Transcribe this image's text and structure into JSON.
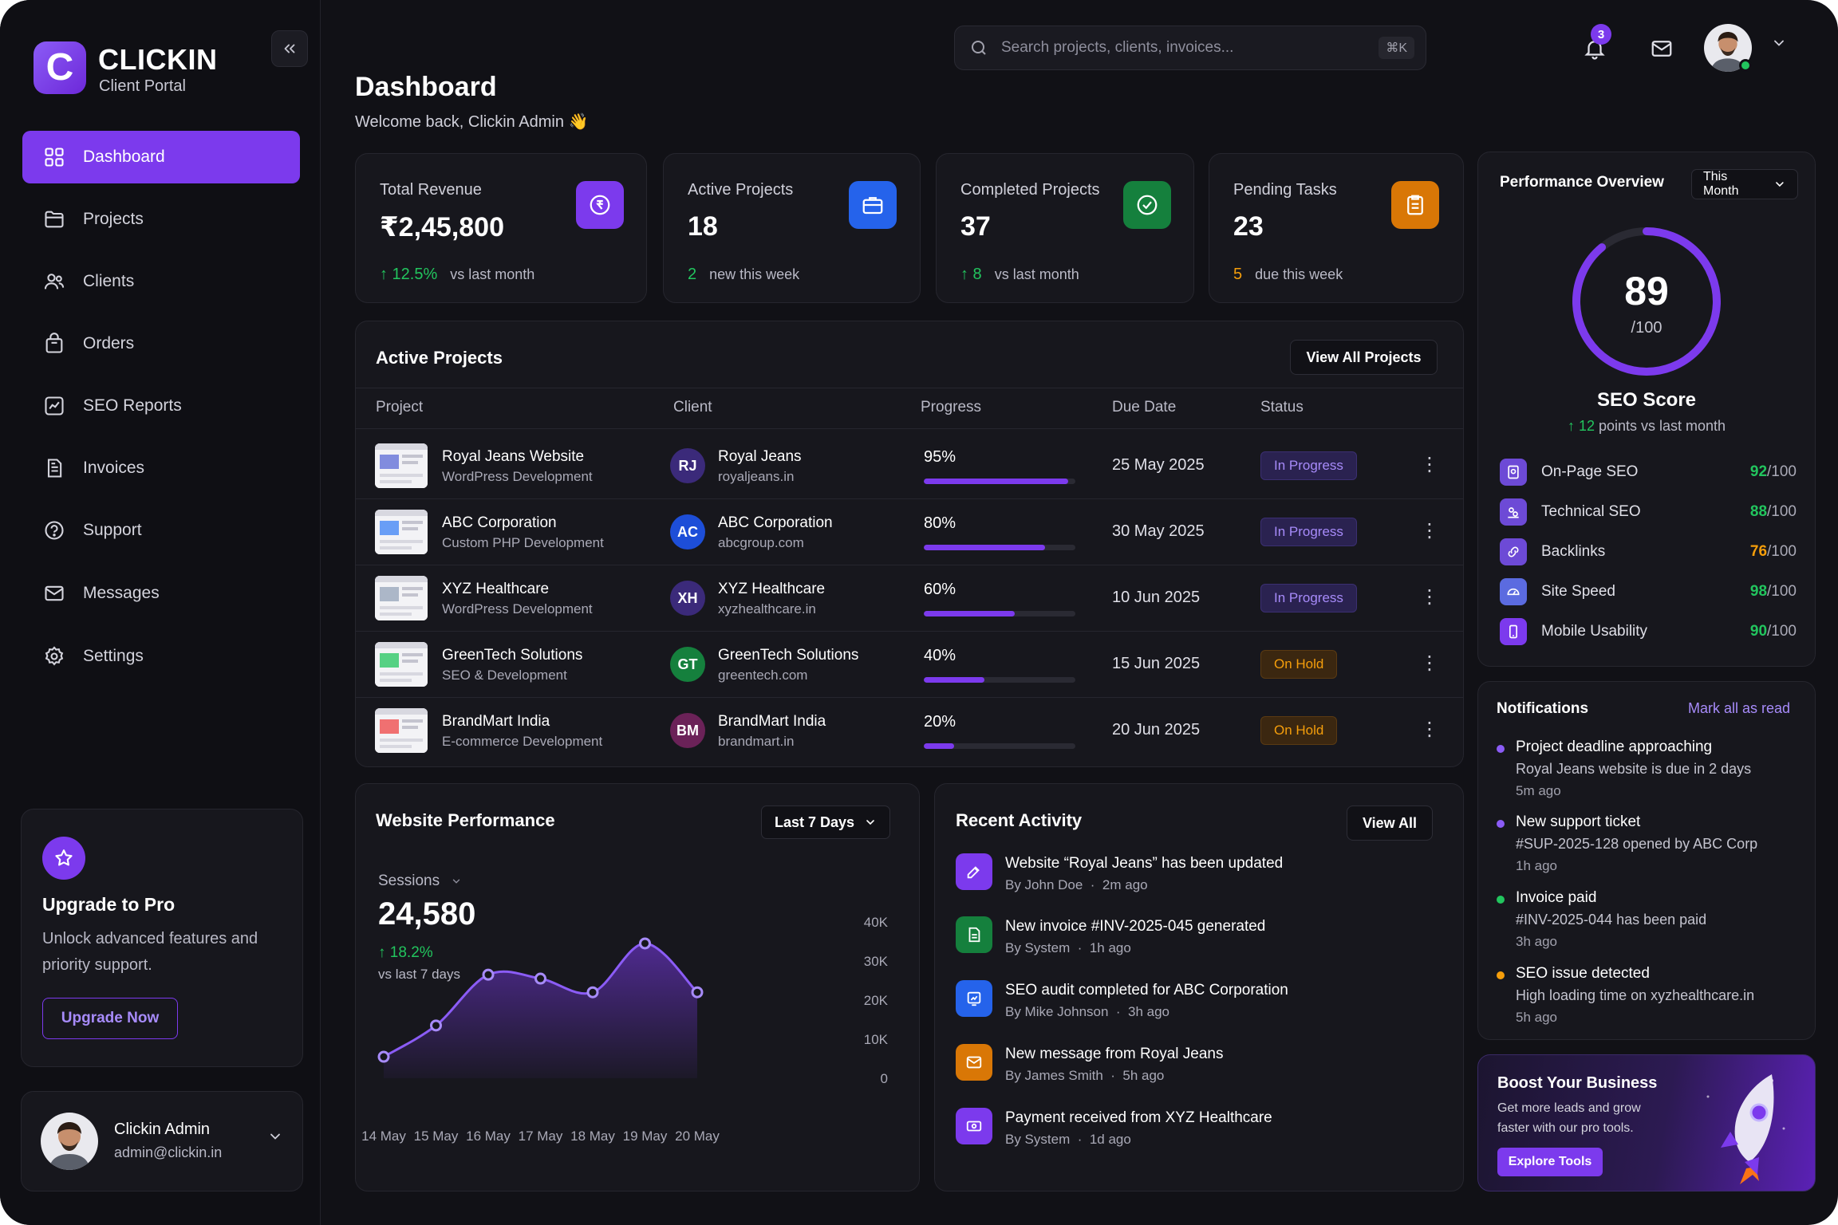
{
  "brand": {
    "letter": "C",
    "name": "CLICKIN",
    "subtitle": "Client Portal"
  },
  "sidebar": {
    "collapse_icon": "double-chevron-left-icon",
    "items": [
      {
        "label": "Dashboard",
        "icon": "grid-icon",
        "active": true
      },
      {
        "label": "Projects",
        "icon": "folder-icon"
      },
      {
        "label": "Clients",
        "icon": "users-icon"
      },
      {
        "label": "Orders",
        "icon": "shopping-bag-icon"
      },
      {
        "label": "SEO Reports",
        "icon": "chart-icon"
      },
      {
        "label": "Invoices",
        "icon": "document-icon"
      },
      {
        "label": "Support",
        "icon": "headset-icon"
      },
      {
        "label": "Messages",
        "icon": "mail-icon"
      },
      {
        "label": "Settings",
        "icon": "gear-icon"
      }
    ],
    "upgrade": {
      "title": "Upgrade to Pro",
      "text": "Unlock advanced features and priority support.",
      "button": "Upgrade Now"
    },
    "profile": {
      "name": "Clickin Admin",
      "email": "admin@clickin.in"
    }
  },
  "header": {
    "title": "Dashboard",
    "welcome": "Welcome back, Clickin Admin 👋",
    "search_placeholder": "Search projects, clients, invoices...",
    "search_shortcut": "⌘K",
    "notification_count": "3"
  },
  "stats": [
    {
      "label": "Total Revenue",
      "value": "₹2,45,800",
      "delta": "↑ 12.5%",
      "note": "vs last month",
      "icon": "rupee-icon",
      "color": "#7c3aed"
    },
    {
      "label": "Active Projects",
      "value": "18",
      "delta": "2",
      "note": "new this week",
      "icon": "briefcase-icon",
      "color": "#2563eb"
    },
    {
      "label": "Completed Projects",
      "value": "37",
      "delta": "↑ 8",
      "note": "vs last month",
      "icon": "check-circle-icon",
      "color": "#15803d"
    },
    {
      "label": "Pending Tasks",
      "value": "23",
      "delta": "5",
      "note": "due this week",
      "icon": "clipboard-icon",
      "color": "#d97706"
    }
  ],
  "active_projects": {
    "title": "Active Projects",
    "view_all": "View All Projects",
    "columns": [
      "Project",
      "Client",
      "Progress",
      "Due Date",
      "Status"
    ],
    "rows": [
      {
        "name": "Royal Jeans Website",
        "type": "WordPress Development",
        "initials": "RJ",
        "client": "Royal Jeans",
        "site": "royaljeans.in",
        "progress": "95%",
        "progress_value": 0.95,
        "due": "25 May 2025",
        "status": "In Progress",
        "av_color": "#3b2a7a"
      },
      {
        "name": "ABC Corporation",
        "type": "Custom PHP Development",
        "initials": "AC",
        "client": "ABC Corporation",
        "site": "abcgroup.com",
        "progress": "80%",
        "progress_value": 0.8,
        "due": "30 May 2025",
        "status": "In Progress",
        "av_color": "#1d4ed8"
      },
      {
        "name": "XYZ Healthcare",
        "type": "WordPress Development",
        "initials": "XH",
        "client": "XYZ Healthcare",
        "site": "xyzhealthcare.in",
        "progress": "60%",
        "progress_value": 0.6,
        "due": "10 Jun 2025",
        "status": "In Progress",
        "av_color": "#3b2a7a"
      },
      {
        "name": "GreenTech Solutions",
        "type": "SEO & Development",
        "initials": "GT",
        "client": "GreenTech Solutions",
        "site": "greentech.com",
        "progress": "40%",
        "progress_value": 0.4,
        "due": "15 Jun 2025",
        "status": "On Hold",
        "av_color": "#15803d"
      },
      {
        "name": "BrandMart India",
        "type": "E-commerce Development",
        "initials": "BM",
        "client": "BrandMart India",
        "site": "brandmart.in",
        "progress": "20%",
        "progress_value": 0.2,
        "due": "20 Jun 2025",
        "status": "On Hold",
        "av_color": "#6b2258"
      }
    ]
  },
  "performance": {
    "title": "Performance Overview",
    "period": "This Month",
    "score": "89",
    "score_max": "/100",
    "score_value": 0.89,
    "score_label": "SEO Score",
    "score_delta": "↑ 12",
    "score_note": "points vs last month",
    "metrics": [
      {
        "label": "On-Page SEO",
        "score": "92",
        "max": "/100",
        "color": "#22c55e",
        "icon": "page-icon"
      },
      {
        "label": "Technical SEO",
        "score": "88",
        "max": "/100",
        "color": "#22c55e",
        "icon": "settings-icon"
      },
      {
        "label": "Backlinks",
        "score": "76",
        "max": "/100",
        "color": "#f59e0b",
        "icon": "link-icon"
      },
      {
        "label": "Site Speed",
        "score": "98",
        "max": "/100",
        "color": "#22c55e",
        "icon": "speedometer-icon"
      },
      {
        "label": "Mobile Usability",
        "score": "90",
        "max": "/100",
        "color": "#22c55e",
        "icon": "mobile-icon"
      }
    ]
  },
  "notifications": {
    "title": "Notifications",
    "mark_all": "Mark all as read",
    "items": [
      {
        "title": "Project deadline approaching",
        "body": "Royal Jeans website is due in 2 days",
        "time": "5m ago",
        "color": "#8b5cf6"
      },
      {
        "title": "New support ticket",
        "body": "#SUP-2025-128 opened by ABC Corp",
        "time": "1h ago",
        "color": "#8b5cf6"
      },
      {
        "title": "Invoice paid",
        "body": "#INV-2025-044 has been paid",
        "time": "3h ago",
        "color": "#22c55e"
      },
      {
        "title": "SEO issue detected",
        "body": "High loading time on xyzhealthcare.in",
        "time": "5h ago",
        "color": "#f59e0b"
      }
    ]
  },
  "boost": {
    "title": "Boost Your Business",
    "text": "Get more leads and grow faster with our pro tools.",
    "button": "Explore Tools"
  },
  "website_performance": {
    "title": "Website Performance",
    "range": "Last 7 Days",
    "metric": "Sessions",
    "value": "24,580",
    "delta": "↑ 18.2%",
    "note": "vs last 7 days"
  },
  "chart_data": {
    "type": "area",
    "x": [
      "14 May",
      "15 May",
      "16 May",
      "17 May",
      "18 May",
      "19 May",
      "20 May"
    ],
    "series": [
      {
        "values": [
          5500,
          13500,
          26500,
          25500,
          22000,
          34500,
          22000
        ]
      }
    ],
    "yticks": [
      "40K",
      "30K",
      "20K",
      "10K",
      "0"
    ],
    "ylim": [
      0,
      40000
    ],
    "grid": false
  },
  "recent_activity": {
    "title": "Recent Activity",
    "view_all": "View All",
    "items": [
      {
        "title": "Website “Royal Jeans” has been updated",
        "by": "By John Doe",
        "time": "2m ago",
        "icon": "edit-icon",
        "color": "#7c3aed"
      },
      {
        "title": "New invoice #INV-2025-045 generated",
        "by": "By System",
        "time": "1h ago",
        "icon": "invoice-icon",
        "color": "#15803d"
      },
      {
        "title": "SEO audit completed for ABC Corporation",
        "by": "By Mike Johnson",
        "time": "3h ago",
        "icon": "audit-icon",
        "color": "#2563eb"
      },
      {
        "title": "New message from Royal Jeans",
        "by": "By James Smith",
        "time": "5h ago",
        "icon": "message-icon",
        "color": "#d97706"
      },
      {
        "title": "Payment received from XYZ Healthcare",
        "by": "By System",
        "time": "1d ago",
        "icon": "payment-icon",
        "color": "#7c3aed"
      }
    ]
  }
}
